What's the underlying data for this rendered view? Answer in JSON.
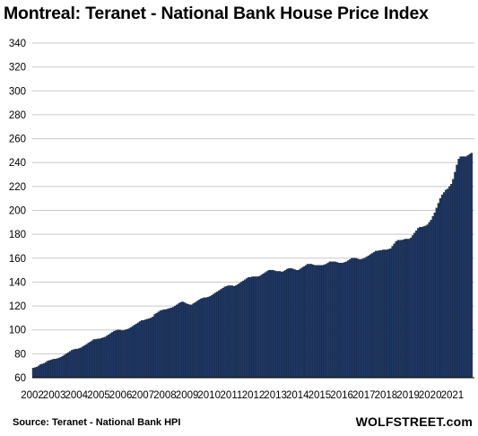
{
  "chart_data": {
    "type": "bar",
    "title": "Montreal: Teranet - National Bank House Price Index",
    "source": "Source: Teranet - National Bank HPI",
    "watermark": "WOLFSTREET.com",
    "frequency": "monthly",
    "start": "2002-01",
    "bar_color": "#1f3864",
    "bar_edge_color": "#0d1a33",
    "grid_color": "#c8c8c8",
    "grid": true,
    "legend": "none",
    "ylim": [
      60,
      340
    ],
    "yticks": [
      60,
      80,
      100,
      120,
      140,
      160,
      180,
      200,
      220,
      240,
      260,
      280,
      300,
      320,
      340
    ],
    "xticks": [
      "2002",
      "2003",
      "2004",
      "2005",
      "2006",
      "2007",
      "2008",
      "2009",
      "2010",
      "2011",
      "2012",
      "2013",
      "2014",
      "2015",
      "2016",
      "2017",
      "2018",
      "2019",
      "2020",
      "2021"
    ],
    "xlabel": "",
    "ylabel": "",
    "values": [
      68,
      68.5,
      69,
      70,
      71,
      71.5,
      72,
      73,
      74,
      74.5,
      75,
      75.5,
      75.5,
      76,
      76.5,
      77,
      78,
      79,
      80,
      81,
      82,
      83,
      83.5,
      84,
      84,
      84.5,
      85,
      86,
      87,
      88,
      89,
      90,
      91,
      92,
      92,
      92.5,
      92.5,
      93,
      93.5,
      94,
      95,
      96,
      97,
      98,
      99,
      99.5,
      100,
      100,
      99.5,
      99.5,
      100,
      100.5,
      101,
      102,
      103,
      104,
      105,
      106,
      107,
      108,
      108,
      108.5,
      109,
      109.5,
      110,
      111,
      113,
      114,
      115,
      116,
      116.5,
      117,
      117,
      117.5,
      118,
      118.5,
      119,
      120,
      121,
      122,
      123,
      123.5,
      123,
      122,
      121.5,
      121,
      121,
      122,
      123,
      124,
      125,
      126,
      126.5,
      127,
      127,
      127.5,
      128,
      129,
      130,
      131,
      132,
      133,
      134,
      135,
      136,
      136.5,
      137,
      137,
      137,
      136.5,
      137,
      138,
      139,
      140,
      141,
      142,
      143,
      144,
      144,
      144.5,
      144.5,
      144.5,
      144.5,
      145,
      146,
      147,
      148,
      149,
      150,
      150,
      150,
      149.5,
      149,
      149,
      149,
      148.5,
      149,
      150,
      151,
      151.5,
      151.5,
      151,
      150.5,
      150,
      150,
      151,
      152,
      153,
      154,
      155,
      155,
      155,
      154.5,
      154,
      154,
      154,
      154,
      154,
      154.5,
      155,
      156,
      157,
      157,
      157,
      157,
      156.5,
      156,
      156,
      156,
      156.5,
      157,
      158,
      159,
      160,
      160,
      160,
      159.5,
      159,
      159,
      159.5,
      160,
      161,
      162,
      163,
      164,
      165,
      166,
      166,
      166.5,
      166.5,
      167,
      167,
      167,
      167.5,
      168,
      170,
      172,
      174,
      175,
      175,
      175,
      175.5,
      176,
      176,
      176,
      177,
      179,
      181,
      183,
      185,
      186,
      186,
      186.5,
      187,
      188,
      190,
      192,
      195,
      198,
      202,
      206,
      210,
      213,
      215,
      217,
      218,
      220,
      222,
      226,
      232,
      238,
      243,
      245,
      245,
      245,
      245,
      246,
      247,
      248
    ]
  }
}
